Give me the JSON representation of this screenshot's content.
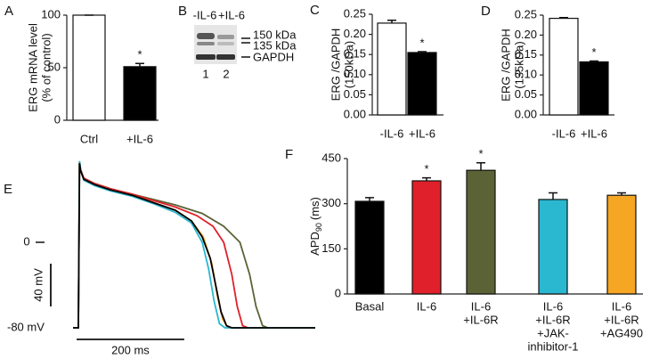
{
  "chart_data": [
    {
      "type": "bar",
      "panel": "A",
      "ylabel": [
        "ERG mRNA level",
        "(% of control)"
      ],
      "categories": [
        "Ctrl",
        "+IL-6"
      ],
      "values": [
        100,
        51
      ],
      "errors": [
        0,
        3
      ],
      "colors": [
        "#ffffff",
        "#000000"
      ],
      "marks": [
        null,
        "*"
      ],
      "ylim": [
        0,
        100
      ],
      "yticks": [
        0,
        50,
        100
      ]
    },
    {
      "type": "blot",
      "panel": "B",
      "lane_labels": [
        "-IL-6",
        "+IL-6"
      ],
      "band_labels": [
        "150 kDa",
        "135 kDa",
        "GAPDH"
      ],
      "lane_numbers": [
        "1",
        "2"
      ]
    },
    {
      "type": "bar",
      "panel": "C",
      "ylabel": [
        "ERG /GAPDH",
        "(150kDa)"
      ],
      "categories": [
        "-IL-6",
        "+IL-6"
      ],
      "values": [
        0.228,
        0.155
      ],
      "errors": [
        0.007,
        0.002
      ],
      "colors": [
        "#ffffff",
        "#000000"
      ],
      "marks": [
        null,
        "*"
      ],
      "ylim": [
        0,
        0.25
      ],
      "yticks": [
        {
          "value": 0,
          "label": "0.00"
        },
        0.05,
        {
          "value": 0.1,
          "label": "0.10"
        },
        0.15,
        {
          "value": 0.2,
          "label": "0.20"
        },
        0.25
      ]
    },
    {
      "type": "bar",
      "panel": "D",
      "ylabel": [
        "ERG /GAPDH",
        "(135kDa)"
      ],
      "categories": [
        "-IL-6",
        "+IL-6"
      ],
      "values": [
        0.242,
        0.133
      ],
      "errors": [
        0.002,
        0.002
      ],
      "colors": [
        "#ffffff",
        "#000000"
      ],
      "marks": [
        null,
        "*"
      ],
      "ylim": [
        0,
        0.25
      ],
      "yticks": [
        {
          "value": 0,
          "label": "0.00"
        },
        0.05,
        {
          "value": 0.1,
          "label": "0.10"
        },
        0.15,
        {
          "value": 0.2,
          "label": "0.20"
        },
        0.25
      ]
    },
    {
      "type": "line",
      "panel": "E",
      "xlim": [
        -10,
        440
      ],
      "ylim": [
        -90,
        85
      ],
      "reference_lines": [
        {
          "value": 0,
          "label": "0"
        },
        {
          "value": -80,
          "label": "-80 mV"
        }
      ],
      "scale_bars": [
        {
          "axis": "y",
          "value": 40,
          "label": "40 mV"
        },
        {
          "axis": "x",
          "value": 200,
          "label": "200 ms"
        }
      ],
      "series": [
        {
          "color": "#5b6336",
          "x": [
            -10,
            0,
            2,
            4,
            10,
            30,
            60,
            100,
            140,
            180,
            230,
            270,
            300,
            318,
            330,
            342,
            352,
            440
          ],
          "values": [
            -80,
            -80,
            75,
            68,
            60,
            55,
            50,
            45,
            40,
            35,
            27,
            15,
            0,
            -30,
            -60,
            -78,
            -80,
            -80
          ]
        },
        {
          "color": "#e0202a",
          "x": [
            -10,
            0,
            2,
            4,
            10,
            30,
            60,
            100,
            140,
            180,
            220,
            250,
            270,
            285,
            295,
            305,
            315,
            440
          ],
          "values": [
            -80,
            -80,
            75,
            68,
            60,
            55,
            50,
            45,
            39,
            33,
            25,
            15,
            0,
            -30,
            -60,
            -78,
            -80,
            -80
          ]
        },
        {
          "color": "#f5a623",
          "x": [
            -10,
            0,
            2,
            4,
            10,
            30,
            60,
            100,
            140,
            180,
            210,
            232,
            248,
            258,
            268,
            278,
            440
          ],
          "values": [
            -80,
            -80,
            74,
            67,
            59,
            54,
            49,
            44,
            37,
            30,
            20,
            5,
            -20,
            -50,
            -72,
            -80,
            -80
          ]
        },
        {
          "color": "#2ab7d0",
          "x": [
            -10,
            0,
            2,
            4,
            10,
            30,
            60,
            100,
            140,
            180,
            210,
            230,
            242,
            252,
            262,
            272,
            440
          ],
          "values": [
            -80,
            -80,
            76,
            68,
            58,
            53,
            48,
            43,
            36,
            28,
            18,
            0,
            -25,
            -55,
            -76,
            -80,
            -80
          ]
        },
        {
          "color": "#000000",
          "x": [
            -10,
            0,
            2,
            4,
            10,
            30,
            60,
            100,
            140,
            180,
            210,
            230,
            245,
            255,
            265,
            275,
            285,
            440
          ],
          "values": [
            -80,
            -80,
            74,
            67,
            59,
            54,
            49,
            44,
            37,
            30,
            20,
            5,
            -15,
            -40,
            -65,
            -78,
            -80,
            -80
          ]
        }
      ]
    },
    {
      "type": "bar",
      "panel": "F",
      "ylabel": {
        "main": "APD",
        "sub": "90",
        "unit": "(ms)"
      },
      "categories": [
        [
          "Basal"
        ],
        [
          "IL-6"
        ],
        [
          "IL-6",
          "+IL-6R"
        ],
        [
          "IL-6",
          "+IL-6R",
          "+JAK-",
          "inhibitor-1"
        ],
        [
          "IL-6",
          "+IL-6R",
          "+AG490"
        ]
      ],
      "values": [
        308,
        376,
        411,
        314,
        328
      ],
      "errors": [
        12,
        10,
        25,
        22,
        8
      ],
      "colors": [
        "#000000",
        "#e0202a",
        "#5b6336",
        "#2ab7d0",
        "#f5a623"
      ],
      "marks": [
        null,
        "*",
        "*",
        null,
        null
      ],
      "ylim": [
        0,
        450
      ],
      "yticks": [
        0,
        150,
        300,
        450
      ]
    }
  ]
}
